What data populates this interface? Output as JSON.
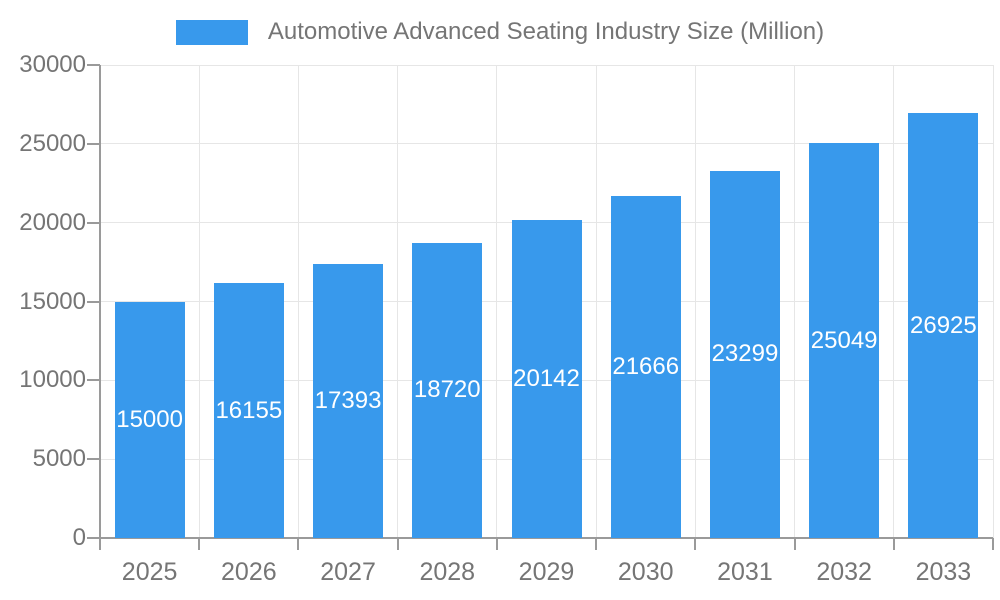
{
  "chart_data": {
    "type": "bar",
    "title": "Automotive Advanced Seating Industry Size (Million)",
    "categories": [
      "2025",
      "2026",
      "2027",
      "2028",
      "2029",
      "2030",
      "2031",
      "2032",
      "2033"
    ],
    "values": [
      15000,
      16155,
      17393,
      18720,
      20142,
      21666,
      23299,
      25049,
      26925
    ],
    "xlabel": "",
    "ylabel": "",
    "ylim": [
      0,
      30000
    ],
    "yticks": [
      0,
      5000,
      10000,
      15000,
      20000,
      25000,
      30000
    ],
    "grid": true,
    "legend_position": "top",
    "colors": {
      "bar": "#3899EC",
      "bar_value_text": "#ffffff",
      "axis_text": "#757575",
      "legend_text": "#757575",
      "axis_line": "#9a9a9a",
      "gridline": "#e6e6e6"
    }
  }
}
